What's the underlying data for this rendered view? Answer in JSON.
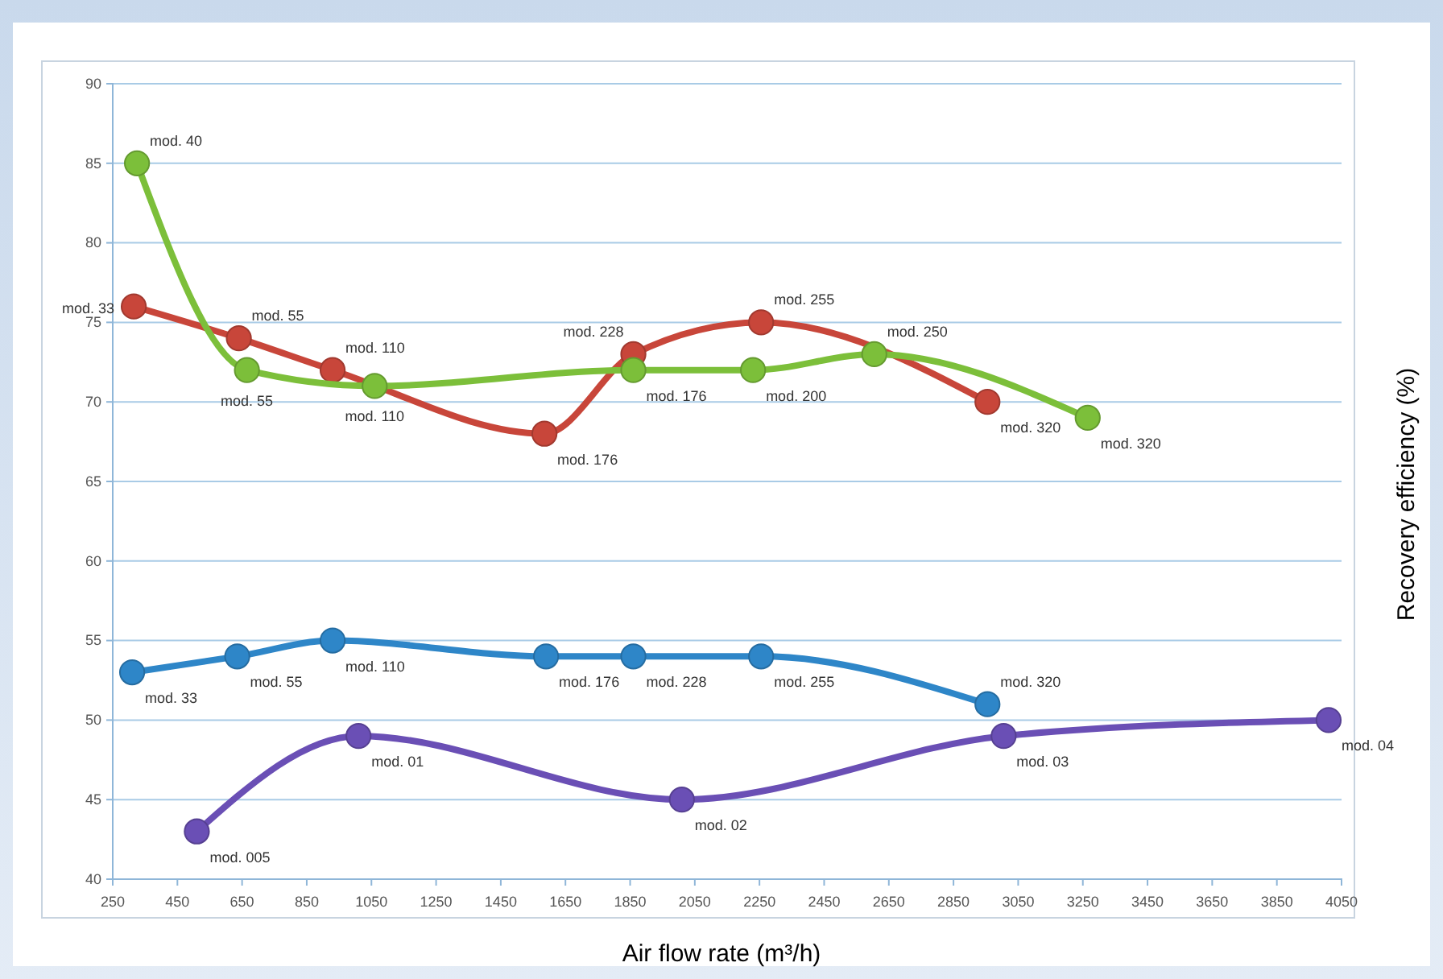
{
  "chart_data": {
    "type": "line",
    "xlabel": "Air flow rate (m³/h)",
    "ylabel": "Recovery efficiency (%)",
    "xlim": [
      250,
      4050
    ],
    "xticks": [
      250,
      450,
      650,
      850,
      1050,
      1250,
      1450,
      1650,
      1850,
      2050,
      2250,
      2450,
      2650,
      2850,
      3050,
      3250,
      3450,
      3650,
      3850,
      4050
    ],
    "ylim": [
      40,
      90
    ],
    "yticks": [
      40,
      45,
      50,
      55,
      60,
      65,
      70,
      75,
      80,
      85,
      90
    ],
    "grid": "y",
    "marker": "circle",
    "line_style": "solid",
    "series": [
      {
        "color": "#2e86c8",
        "x": [
          310,
          635,
          930,
          1590,
          1860,
          2255,
          2955
        ],
        "values": [
          53,
          54,
          55,
          54,
          54,
          54,
          51
        ]
      },
      {
        "color": "#c8463a",
        "x": [
          315,
          640,
          930,
          1585,
          1860,
          2255,
          2955
        ],
        "values": [
          76,
          74,
          72,
          68,
          73,
          75,
          70
        ]
      },
      {
        "color": "#7cbf3a",
        "x": [
          325,
          665,
          1060,
          1860,
          2230,
          2605,
          3265
        ],
        "values": [
          85,
          72,
          71,
          72,
          72,
          73,
          69
        ]
      },
      {
        "color": "#6a4fb5",
        "x": [
          510,
          1010,
          2010,
          3005,
          4010
        ],
        "values": [
          43,
          49,
          45,
          49,
          50
        ]
      }
    ],
    "annotations": [
      {
        "text": "mod. 33",
        "x": 310,
        "y": 53
      },
      {
        "text": "mod. 55",
        "x": 635,
        "y": 54
      },
      {
        "text": "mod. 110",
        "x": 930,
        "y": 55
      },
      {
        "text": "mod. 176",
        "x": 1590,
        "y": 54
      },
      {
        "text": "mod. 228",
        "x": 1860,
        "y": 54
      },
      {
        "text": "mod. 255",
        "x": 2255,
        "y": 54
      },
      {
        "text": "mod. 320",
        "x": 2955,
        "y": 51
      },
      {
        "text": "mod. 33",
        "x": 315,
        "y": 76
      },
      {
        "text": "mod. 55",
        "x": 640,
        "y": 74
      },
      {
        "text": "mod. 110",
        "x": 930,
        "y": 72
      },
      {
        "text": "mod. 176",
        "x": 1585,
        "y": 68
      },
      {
        "text": "mod. 228",
        "x": 1860,
        "y": 73
      },
      {
        "text": "mod. 255",
        "x": 2255,
        "y": 75
      },
      {
        "text": "mod. 320",
        "x": 2955,
        "y": 70
      },
      {
        "text": "mod. 40",
        "x": 325,
        "y": 85
      },
      {
        "text": "mod. 55",
        "x": 665,
        "y": 72
      },
      {
        "text": "mod. 110",
        "x": 1060,
        "y": 71
      },
      {
        "text": "mod. 176",
        "x": 1860,
        "y": 72
      },
      {
        "text": "mod. 200",
        "x": 2230,
        "y": 72
      },
      {
        "text": "mod. 250",
        "x": 2605,
        "y": 73
      },
      {
        "text": "mod. 320",
        "x": 3265,
        "y": 69
      },
      {
        "text": "mod. 005",
        "x": 510,
        "y": 43
      },
      {
        "text": "mod. 01",
        "x": 1010,
        "y": 49
      },
      {
        "text": "mod. 02",
        "x": 2010,
        "y": 45
      },
      {
        "text": "mod. 03",
        "x": 3005,
        "y": 49
      },
      {
        "text": "mod. 04",
        "x": 4010,
        "y": 50
      }
    ]
  }
}
